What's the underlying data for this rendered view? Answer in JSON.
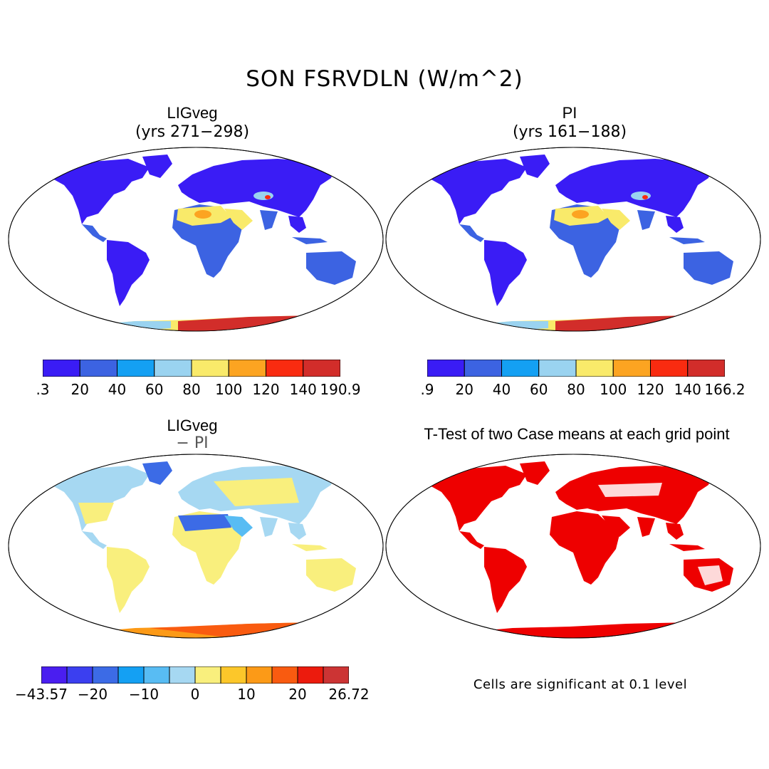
{
  "figure": {
    "title": "SON FSRVDLN (W/m^2)"
  },
  "panels": {
    "lig": {
      "title": "LIGveg",
      "subtitle": "(yrs 271−298)",
      "colorbar_labels": [
        ".3",
        "20",
        "40",
        "60",
        "80",
        "100",
        "120",
        "140",
        "190.9"
      ],
      "colorbar_colors": [
        "#3a1cf5",
        "#3c63e2",
        "#14a0f3",
        "#9ad3f0",
        "#f9ea6a",
        "#fca421",
        "#f92b10",
        "#d22d2a"
      ]
    },
    "pi": {
      "title": "PI",
      "subtitle": "(yrs 161−188)",
      "colorbar_labels": [
        ".9",
        "20",
        "40",
        "60",
        "80",
        "100",
        "120",
        "140",
        "166.2"
      ],
      "colorbar_colors": [
        "#3a1cf5",
        "#3c63e2",
        "#14a0f3",
        "#9ad3f0",
        "#f9ea6a",
        "#fca421",
        "#f92b10",
        "#d22d2a"
      ]
    },
    "diff": {
      "title": "LIGveg",
      "subtitle": "− PI",
      "colorbar_labels": [
        "−43.57",
        "−20",
        "−10",
        "0",
        "10",
        "20",
        "26.72"
      ],
      "colorbar_colors": [
        "#4a1ef0",
        "#3b3ff0",
        "#3c6be6",
        "#14a0f3",
        "#58bcf3",
        "#a6d8f2",
        "#f9ef7d",
        "#fcc72a",
        "#fc9a17",
        "#f95b10",
        "#ec1b0d",
        "#cc3434"
      ]
    },
    "ttest": {
      "title": "T-Test of two Case means at each grid point",
      "footnote": "Cells are significant at 0.1 level",
      "significant_color": "#ee0000"
    }
  }
}
